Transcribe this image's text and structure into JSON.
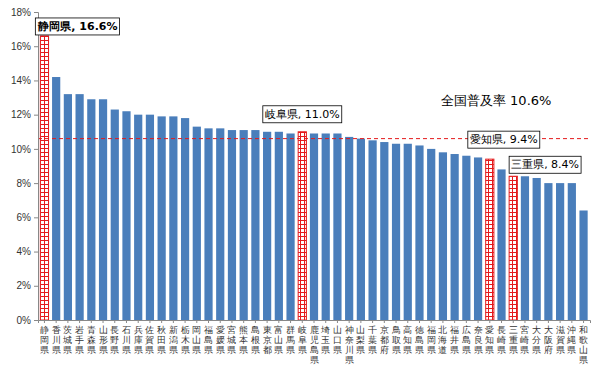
{
  "chart_data": {
    "type": "bar",
    "categories": [
      "静岡県",
      "香川県",
      "茨城県",
      "岩手県",
      "青森県",
      "山形県",
      "長野県",
      "石川県",
      "兵庫県",
      "佐賀県",
      "秋田県",
      "新潟県",
      "栃木県",
      "岡山県",
      "福島県",
      "愛媛県",
      "宮城県",
      "熊本県",
      "島根県",
      "東京都",
      "富山県",
      "群馬県",
      "岐阜県",
      "鹿児島県",
      "埼玉県",
      "山口県",
      "神奈川県",
      "山梨県",
      "千葉県",
      "京都府",
      "鳥取県",
      "高知県",
      "徳島県",
      "福岡県",
      "北海道",
      "福井県",
      "広島県",
      "奈良県",
      "愛知県",
      "長崎県",
      "三重県",
      "宮崎県",
      "大分県",
      "大阪府",
      "滋賀県",
      "沖縄県",
      "和歌山県"
    ],
    "values": [
      16.6,
      14.2,
      13.2,
      13.2,
      12.9,
      12.9,
      12.3,
      12.2,
      12.0,
      12.0,
      11.9,
      11.9,
      11.8,
      11.3,
      11.2,
      11.2,
      11.1,
      11.1,
      11.1,
      11.0,
      11.0,
      10.9,
      11.0,
      10.9,
      10.9,
      10.9,
      10.7,
      10.6,
      10.5,
      10.4,
      10.3,
      10.3,
      10.2,
      10.0,
      9.8,
      9.7,
      9.6,
      9.5,
      9.4,
      8.8,
      8.4,
      8.4,
      8.3,
      8.0,
      8.0,
      8.0,
      6.4
    ],
    "color": "#4a7ebb",
    "colors": [
      "#e41a1c",
      "#4a7ebb",
      "#4a7ebb",
      "#4a7ebb",
      "#4a7ebb",
      "#4a7ebb",
      "#4a7ebb",
      "#4a7ebb",
      "#4a7ebb",
      "#4a7ebb",
      "#4a7ebb",
      "#4a7ebb",
      "#4a7ebb",
      "#4a7ebb",
      "#4a7ebb",
      "#4a7ebb",
      "#4a7ebb",
      "#4a7ebb",
      "#4a7ebb",
      "#4a7ebb",
      "#4a7ebb",
      "#4a7ebb",
      "#e41a1c",
      "#4a7ebb",
      "#4a7ebb",
      "#4a7ebb",
      "#4a7ebb",
      "#4a7ebb",
      "#4a7ebb",
      "#4a7ebb",
      "#4a7ebb",
      "#4a7ebb",
      "#4a7ebb",
      "#4a7ebb",
      "#4a7ebb",
      "#4a7ebb",
      "#4a7ebb",
      "#4a7ebb",
      "#e41a1c",
      "#4a7ebb",
      "#e41a1c",
      "#4a7ebb",
      "#4a7ebb",
      "#4a7ebb",
      "#4a7ebb",
      "#4a7ebb",
      "#4a7ebb"
    ],
    "ylim": [
      0,
      18
    ],
    "yticks": [
      {
        "value": 0,
        "label": "0%"
      },
      {
        "value": 2,
        "label": "2%"
      },
      {
        "value": 4,
        "label": "4%"
      },
      {
        "value": 6,
        "label": "6%"
      },
      {
        "value": 8,
        "label": "8%"
      },
      {
        "value": 10,
        "label": "10%"
      },
      {
        "value": 12,
        "label": "12%"
      },
      {
        "value": 14,
        "label": "14%"
      },
      {
        "value": 16,
        "label": "16%"
      },
      {
        "value": 18,
        "label": "18%"
      }
    ],
    "grid": false,
    "average": 10.6,
    "average_label": "全国普及率 10.6%",
    "annotations": [
      {
        "text": "静岡県, 16.6%",
        "category": "静岡県"
      },
      {
        "text": "岐阜県, 11.0%",
        "category": "岐阜県"
      },
      {
        "text": "愛知県, 9.4%",
        "category": "愛知県"
      },
      {
        "text": "三重県, 8.4%",
        "category": "三重県"
      }
    ]
  }
}
